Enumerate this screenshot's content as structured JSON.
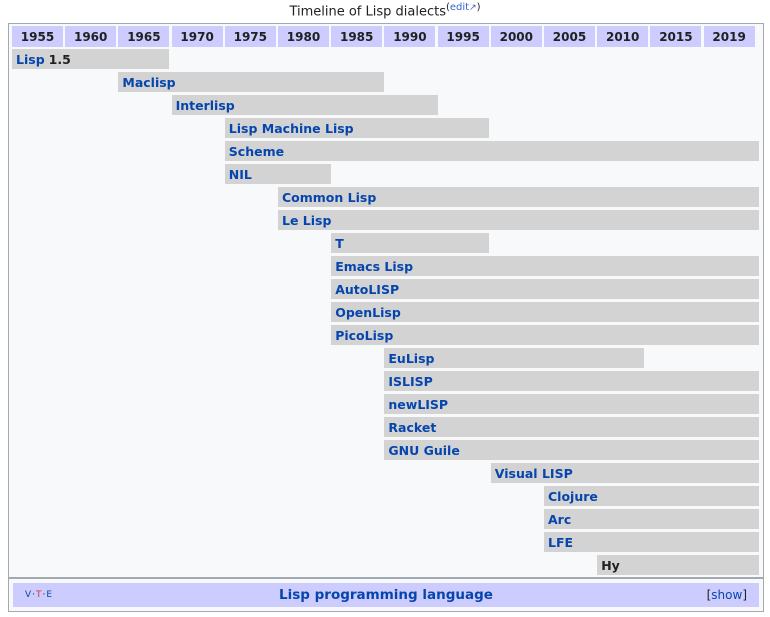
{
  "caption": {
    "title": "Timeline of Lisp dialects",
    "edit_open": "(",
    "edit_label": "edit",
    "edit_icon": "↗",
    "edit_close": ")"
  },
  "years": [
    "1955",
    "1960",
    "1965",
    "1970",
    "1975",
    "1980",
    "1985",
    "1990",
    "1995",
    "2000",
    "2005",
    "2010",
    "2015",
    "2019"
  ],
  "dialects": [
    {
      "name": "Lisp",
      "suffix": "1.5",
      "start": 1955,
      "end": 1969.8,
      "link": true
    },
    {
      "name": "Maclisp",
      "suffix": "",
      "start": 1965,
      "end": 1990,
      "link": true
    },
    {
      "name": "Interlisp",
      "suffix": "",
      "start": 1970,
      "end": 1995,
      "link": true
    },
    {
      "name": "Lisp Machine Lisp",
      "suffix": "",
      "start": 1975,
      "end": 1999.8,
      "link": true
    },
    {
      "name": "Scheme",
      "suffix": "",
      "start": 1975,
      "end": 2019,
      "link": true
    },
    {
      "name": "NIL",
      "suffix": "",
      "start": 1975,
      "end": 1985,
      "link": true
    },
    {
      "name": "Common Lisp",
      "suffix": "",
      "start": 1980,
      "end": 2019,
      "link": true
    },
    {
      "name": "Le Lisp",
      "suffix": "",
      "start": 1980,
      "end": 2019,
      "link": true
    },
    {
      "name": "T",
      "suffix": "",
      "start": 1985,
      "end": 1999.8,
      "link": true
    },
    {
      "name": "Emacs Lisp",
      "suffix": "",
      "start": 1985,
      "end": 2019,
      "link": true
    },
    {
      "name": "AutoLISP",
      "suffix": "",
      "start": 1985,
      "end": 2019,
      "link": true
    },
    {
      "name": "OpenLisp",
      "suffix": "",
      "start": 1985,
      "end": 2019,
      "link": true
    },
    {
      "name": "PicoLisp",
      "suffix": "",
      "start": 1985,
      "end": 2019,
      "link": true
    },
    {
      "name": "EuLisp",
      "suffix": "",
      "start": 1990,
      "end": 2014.4,
      "link": true
    },
    {
      "name": "ISLISP",
      "suffix": "",
      "start": 1990,
      "end": 2019,
      "link": true
    },
    {
      "name": "newLISP",
      "suffix": "",
      "start": 1990,
      "end": 2019,
      "link": true
    },
    {
      "name": "Racket",
      "suffix": "",
      "start": 1990,
      "end": 2019,
      "link": true
    },
    {
      "name": "GNU Guile",
      "suffix": "",
      "start": 1990,
      "end": 2019,
      "link": true
    },
    {
      "name": "Visual LISP",
      "suffix": "",
      "start": 2000,
      "end": 2019,
      "link": true
    },
    {
      "name": "Clojure",
      "suffix": "",
      "start": 2005,
      "end": 2019,
      "link": true
    },
    {
      "name": "Arc",
      "suffix": "",
      "start": 2005,
      "end": 2019,
      "link": true
    },
    {
      "name": "LFE",
      "suffix": "",
      "start": 2005,
      "end": 2019,
      "link": true
    },
    {
      "name": "Hy",
      "suffix": "",
      "start": 2010,
      "end": 2019,
      "link": false
    }
  ],
  "navbox": {
    "vte": {
      "v": "V",
      "t": "T",
      "e": "E",
      "sep": "·"
    },
    "title": "Lisp programming language",
    "toggle_open": "[",
    "toggle_label": "show",
    "toggle_close": "]"
  },
  "colors": {
    "header_bg": "#ccccff",
    "bar_bg": "#d3d3d3",
    "link": "#0645ad",
    "frame_bg": "#f8f9fa"
  }
}
